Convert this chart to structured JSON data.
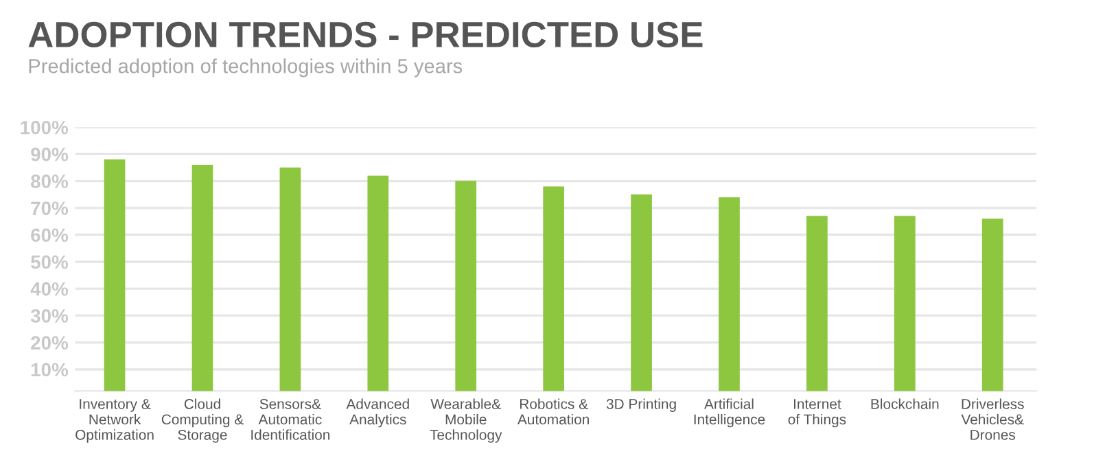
{
  "chart_data": {
    "type": "bar",
    "title": "ADOPTION TRENDS - PREDICTED USE",
    "subtitle": "Predicted adoption of technologies within 5 years",
    "categories": [
      "Inventory &\nNetwork\nOptimization",
      "Cloud\nComputing &\nStorage",
      "Sensors&\nAutomatic\nIdentification",
      "Advanced\nAnalytics",
      "Wearable&\nMobile\nTechnology",
      "Robotics &\nAutomation",
      "3D Printing",
      "Artificial\nIntelligence",
      "Internet\nof Things",
      "Blockchain",
      "Driverless\nVehicles&\nDrones"
    ],
    "values": [
      88,
      86,
      85,
      82,
      80,
      78,
      75,
      74,
      67,
      67,
      66
    ],
    "color": "#8dc63f",
    "ylim": [
      2,
      100
    ],
    "yticks": [
      {
        "value": 10,
        "label": "10%"
      },
      {
        "value": 20,
        "label": "20%"
      },
      {
        "value": 30,
        "label": "30%"
      },
      {
        "value": 40,
        "label": "40%"
      },
      {
        "value": 50,
        "label": "50%"
      },
      {
        "value": 60,
        "label": "60%"
      },
      {
        "value": 70,
        "label": "70%"
      },
      {
        "value": 80,
        "label": "80%"
      },
      {
        "value": 90,
        "label": "90%"
      },
      {
        "value": 100,
        "label": "100%"
      }
    ],
    "grid": "y",
    "legend": false
  }
}
